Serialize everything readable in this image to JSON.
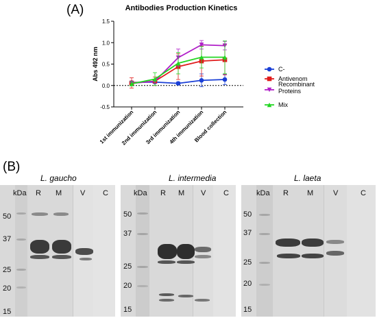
{
  "panel_a_label": "(A)",
  "panel_b_label": "(B)",
  "chart_data": {
    "type": "line",
    "title": "Antibodies Production Kinetics",
    "xlabel": "",
    "ylabel": "Abs 492 nm",
    "categories": [
      "1st immunization",
      "2nd immunization",
      "3rd immunization",
      "4th immunization",
      "Blood collection"
    ],
    "ylim": [
      -0.5,
      1.5
    ],
    "yticks": [
      "-0.5",
      "0.0",
      "0.5",
      "1.0",
      "1.5"
    ],
    "reference_line_y": 0,
    "legend_position": "right",
    "series": [
      {
        "name": "C-",
        "color": "#1a3fd6",
        "marker": "circle",
        "values": [
          0.07,
          0.08,
          0.05,
          0.12,
          0.14
        ],
        "errors": [
          0.03,
          0.03,
          0.03,
          0.15,
          0.12
        ]
      },
      {
        "name": "Antivenom",
        "color": "#e01b1b",
        "marker": "square",
        "values": [
          0.06,
          0.1,
          0.44,
          0.57,
          0.6
        ],
        "errors": [
          0.12,
          0.1,
          0.3,
          0.35,
          0.35
        ]
      },
      {
        "name": "Recombinant Proteins",
        "color": "#b01ec8",
        "marker": "triangle-down",
        "values": [
          0.05,
          0.1,
          0.65,
          0.95,
          0.93
        ],
        "errors": [
          0.05,
          0.05,
          0.2,
          0.1,
          0.1
        ]
      },
      {
        "name": "Mix",
        "color": "#22d622",
        "marker": "triangle-up",
        "values": [
          0.04,
          0.15,
          0.52,
          0.66,
          0.66
        ],
        "errors": [
          0.05,
          0.15,
          0.25,
          0.25,
          0.38
        ]
      }
    ]
  },
  "blots": [
    {
      "title": "L. gaucho",
      "kda_label": "kDa",
      "lanes": [
        "R",
        "M",
        "V",
        "C"
      ],
      "markers": [
        "50",
        "37",
        "25",
        "20",
        "15"
      ]
    },
    {
      "title": "L. intermedia",
      "kda_label": "kDa",
      "lanes": [
        "R",
        "M",
        "V",
        "C"
      ],
      "markers": [
        "50",
        "37",
        "25",
        "20",
        "15"
      ]
    },
    {
      "title": "L. laeta",
      "kda_label": "kDa",
      "lanes": [
        "R",
        "M",
        "V",
        "C"
      ],
      "markers": [
        "50",
        "37",
        "25",
        "20",
        "15"
      ]
    }
  ]
}
